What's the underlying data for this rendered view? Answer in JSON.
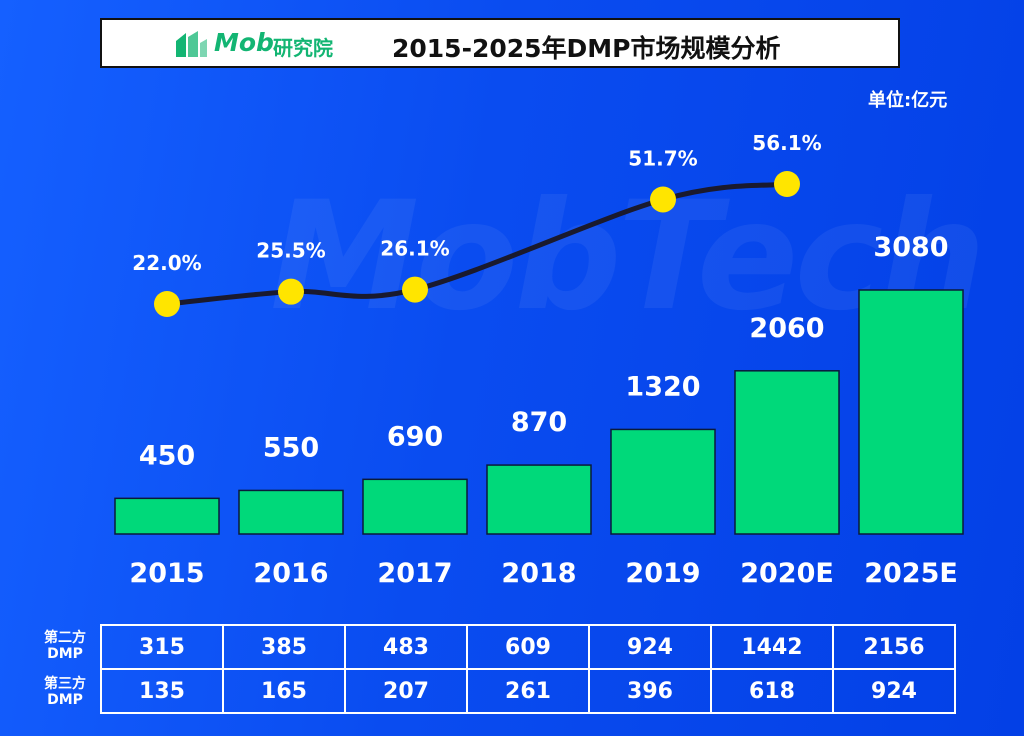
{
  "header": {
    "logo_text": "Mob",
    "logo_sub": "研究院",
    "title": "2015-2025年DMP市场规模分析"
  },
  "unit_label": "单位:亿元",
  "watermark_text": "MobTech",
  "colors": {
    "background": "#0a4df0",
    "bar": "#00d97a",
    "line": "#1a1a2e",
    "marker": "#ffe500",
    "logo_green": "#13b573"
  },
  "chart_data": {
    "type": "bar",
    "categories": [
      "2015",
      "2016",
      "2017",
      "2018",
      "2019",
      "2020E",
      "2025E"
    ],
    "values": [
      450,
      550,
      690,
      870,
      1320,
      2060,
      3080
    ],
    "value_labels": [
      "450",
      "550",
      "690",
      "870",
      "1320",
      "2060",
      "3080"
    ],
    "line_series": {
      "values": [
        22.0,
        25.5,
        26.1,
        null,
        51.7,
        56.1,
        null
      ],
      "labels": [
        "22.0%",
        "25.5%",
        "26.1%",
        "",
        "51.7%",
        "56.1%",
        ""
      ]
    },
    "ylim": [
      0,
      3080
    ],
    "grid": false
  },
  "table": {
    "rows": [
      {
        "label_line1": "第二方",
        "label_line2": "DMP",
        "values": [
          "315",
          "385",
          "483",
          "609",
          "924",
          "1442",
          "2156"
        ]
      },
      {
        "label_line1": "第三方",
        "label_line2": "DMP",
        "values": [
          "135",
          "165",
          "207",
          "261",
          "396",
          "618",
          "924"
        ]
      }
    ]
  }
}
